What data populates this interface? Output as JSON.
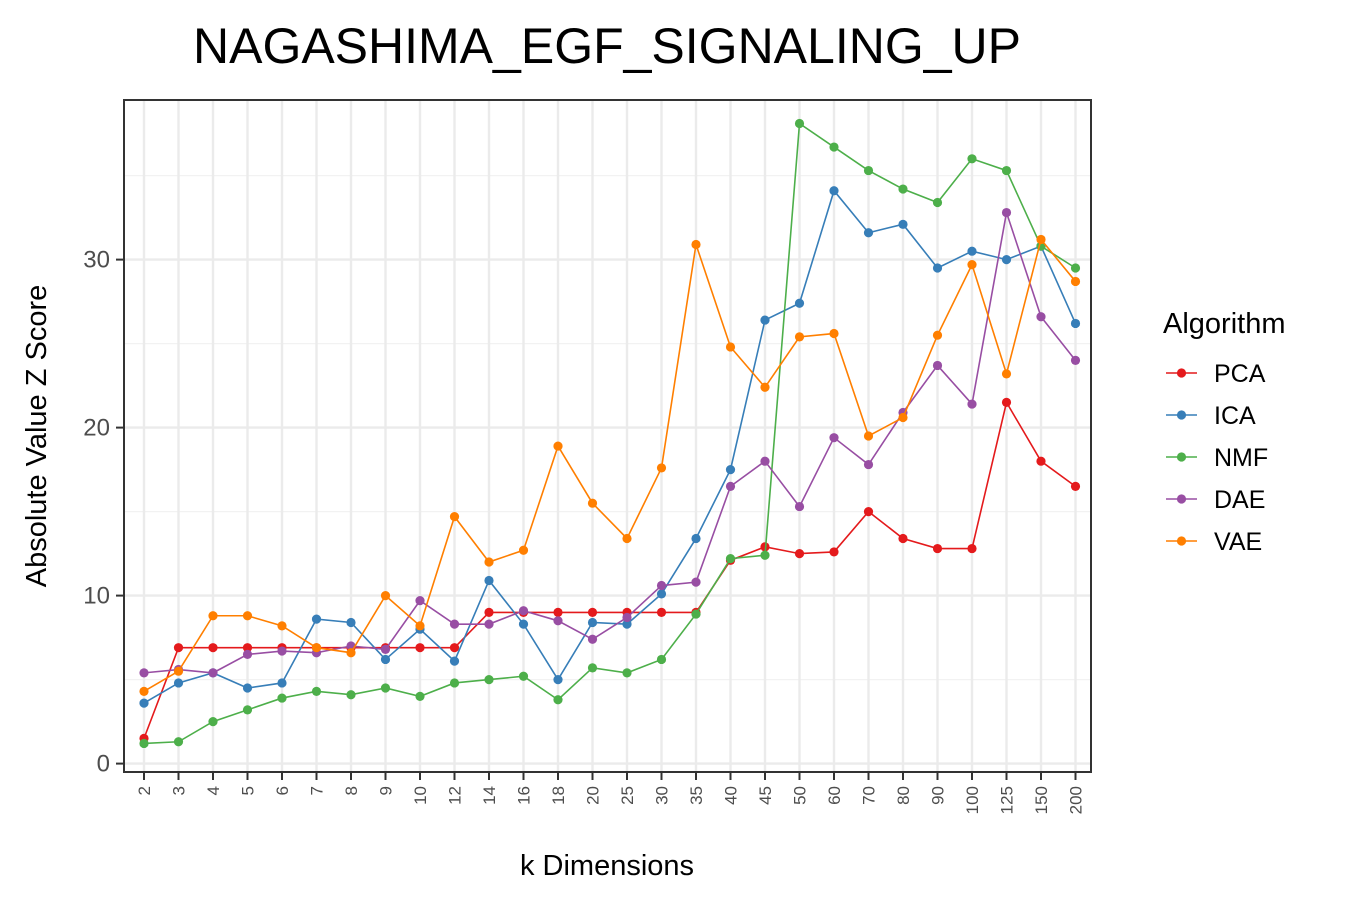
{
  "chart_data": {
    "type": "line",
    "title": "NAGASHIMA_EGF_SIGNALING_UP",
    "xlabel": "k Dimensions",
    "ylabel": "Absolute Value Z Score",
    "categories": [
      "2",
      "3",
      "4",
      "5",
      "6",
      "7",
      "8",
      "9",
      "10",
      "12",
      "14",
      "16",
      "18",
      "20",
      "25",
      "30",
      "35",
      "40",
      "45",
      "50",
      "60",
      "70",
      "80",
      "90",
      "100",
      "125",
      "150",
      "200"
    ],
    "ylim": [
      -0.5,
      39.5
    ],
    "yticks": [
      0,
      10,
      20,
      30
    ],
    "grid": true,
    "legend": {
      "title": "Algorithm",
      "position": "right"
    },
    "series": [
      {
        "name": "PCA",
        "color": "#e41a1c",
        "values": [
          1.5,
          6.9,
          6.9,
          6.9,
          6.9,
          6.9,
          6.9,
          6.9,
          6.9,
          6.9,
          9.0,
          9.0,
          9.0,
          9.0,
          9.0,
          9.0,
          9.0,
          12.1,
          12.9,
          12.5,
          12.6,
          15.0,
          13.4,
          12.8,
          12.8,
          21.5,
          18.0,
          16.5
        ]
      },
      {
        "name": "ICA",
        "color": "#377eb8",
        "values": [
          3.6,
          4.8,
          5.4,
          4.5,
          4.8,
          8.6,
          8.4,
          6.2,
          8.0,
          6.1,
          10.9,
          8.3,
          5.0,
          8.4,
          8.3,
          10.1,
          13.4,
          17.5,
          26.4,
          27.4,
          34.1,
          31.6,
          32.1,
          29.5,
          30.5,
          30.0,
          30.8,
          26.2
        ]
      },
      {
        "name": "NMF",
        "color": "#4daf4a",
        "values": [
          1.2,
          1.3,
          2.5,
          3.2,
          3.9,
          4.3,
          4.1,
          4.5,
          4.0,
          4.8,
          5.0,
          5.2,
          3.8,
          5.7,
          5.4,
          6.2,
          8.9,
          12.2,
          12.4,
          38.1,
          36.7,
          35.3,
          34.2,
          33.4,
          36.0,
          35.3,
          30.8,
          29.5
        ]
      },
      {
        "name": "DAE",
        "color": "#984ea3",
        "values": [
          5.4,
          5.6,
          5.4,
          6.5,
          6.7,
          6.6,
          7.0,
          6.8,
          9.7,
          8.3,
          8.3,
          9.1,
          8.5,
          7.4,
          8.7,
          10.6,
          10.8,
          16.5,
          18.0,
          15.3,
          19.4,
          17.8,
          20.9,
          23.7,
          21.4,
          32.8,
          26.6,
          24.0
        ]
      },
      {
        "name": "VAE",
        "color": "#ff7f00",
        "values": [
          4.3,
          5.5,
          8.8,
          8.8,
          8.2,
          6.9,
          6.6,
          10.0,
          8.2,
          14.7,
          12.0,
          12.7,
          18.9,
          15.5,
          13.4,
          17.6,
          30.9,
          24.8,
          22.4,
          25.4,
          25.6,
          19.5,
          20.6,
          25.5,
          29.7,
          23.2,
          31.2,
          28.7
        ]
      }
    ]
  }
}
